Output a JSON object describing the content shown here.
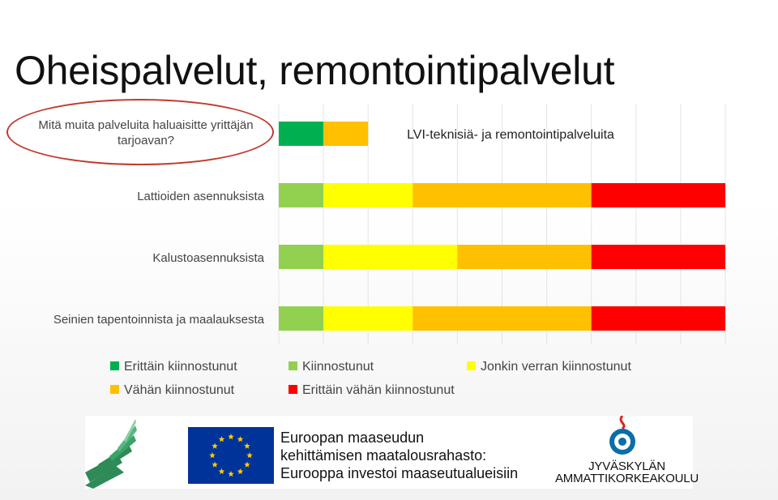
{
  "page": {
    "title": "Oheispalvelut, remontointipalvelut",
    "question": "Mitä muita palveluita haluaisitte yrittäjän tarjoavan?"
  },
  "chart_data": {
    "type": "bar",
    "orientation": "horizontal",
    "stacked": true,
    "categories": [
      "LVI-teknisiä- ja remontointipalveluita",
      "Lattioiden asennuksista",
      "Kalustoasennuksista",
      "Seinien tapentoinnista ja maalauksesta"
    ],
    "series": [
      {
        "name": "Erittäin kiinnostunut",
        "color": "#00b050",
        "values": [
          1,
          0,
          0,
          0
        ]
      },
      {
        "name": "Kiinnostunut",
        "color": "#92d050",
        "values": [
          0,
          1,
          1,
          1
        ]
      },
      {
        "name": "Jonkin verran kiinnostunut",
        "color": "#ffff00",
        "values": [
          0,
          2,
          3,
          2
        ]
      },
      {
        "name": "Vähän kiinnostunut",
        "color": "#ffc000",
        "values": [
          1,
          4,
          3,
          4
        ]
      },
      {
        "name": "Erittäin vähän kiinnostunut",
        "color": "#ff0000",
        "values": [
          0,
          3,
          3,
          3
        ]
      }
    ],
    "xlim": [
      0,
      10
    ],
    "grid": true,
    "legend": "bottom"
  },
  "footer": {
    "fund_line1": "Euroopan maaseudun",
    "fund_line2": "kehittämisen maatalousrahasto:",
    "fund_line3": "Eurooppa investoi maaseutualueisiin",
    "school_line1": "JYVÄSKYLÄN",
    "school_line2": "AMMATTIKORKEAKOULU",
    "eu_blue": "#003399",
    "eu_star": "#ffcc00"
  }
}
